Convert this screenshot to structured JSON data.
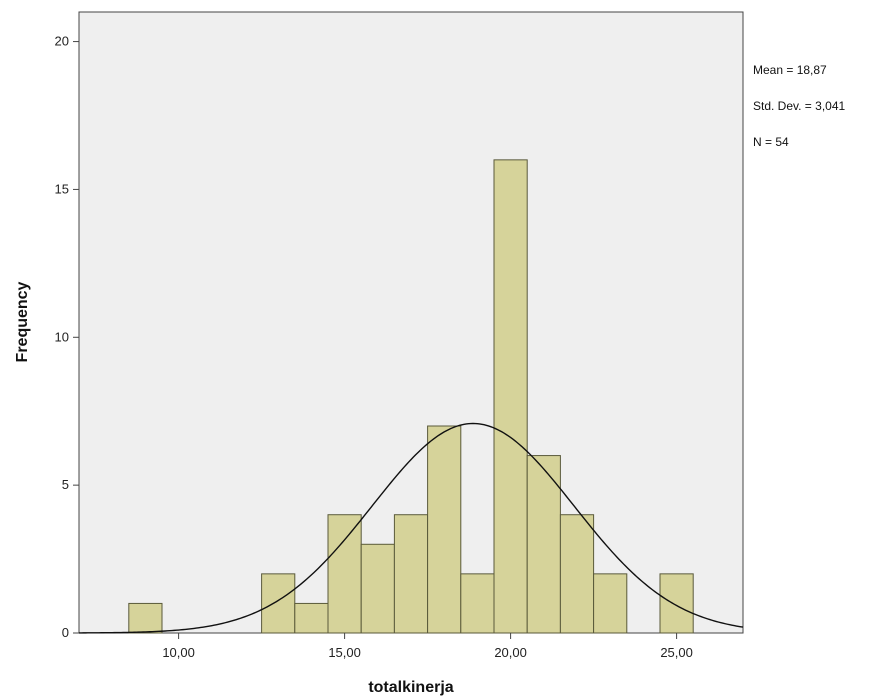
{
  "chart_data": {
    "type": "bar",
    "subtype": "histogram",
    "xlabel": "totalkinerja",
    "ylabel": "Frequency",
    "xlim": [
      7.0,
      27.0
    ],
    "ylim": [
      0,
      21
    ],
    "x_ticks": [
      10,
      15,
      20,
      25
    ],
    "x_tick_labels": [
      "10,00",
      "15,00",
      "20,00",
      "25,00"
    ],
    "y_ticks": [
      0,
      5,
      10,
      15,
      20
    ],
    "y_tick_labels": [
      "0",
      "5",
      "10",
      "15",
      "20"
    ],
    "bin_width": 1.0,
    "bins": [
      {
        "start": 8.5,
        "end": 9.5,
        "count": 1
      },
      {
        "start": 12.5,
        "end": 13.5,
        "count": 2
      },
      {
        "start": 13.5,
        "end": 14.5,
        "count": 1
      },
      {
        "start": 14.5,
        "end": 15.5,
        "count": 4
      },
      {
        "start": 15.5,
        "end": 16.5,
        "count": 3
      },
      {
        "start": 16.5,
        "end": 17.5,
        "count": 4
      },
      {
        "start": 17.5,
        "end": 18.5,
        "count": 7
      },
      {
        "start": 18.5,
        "end": 19.5,
        "count": 2
      },
      {
        "start": 19.5,
        "end": 20.5,
        "count": 16
      },
      {
        "start": 20.5,
        "end": 21.5,
        "count": 6
      },
      {
        "start": 21.5,
        "end": 22.5,
        "count": 4
      },
      {
        "start": 22.5,
        "end": 23.5,
        "count": 2
      },
      {
        "start": 24.5,
        "end": 25.5,
        "count": 2
      }
    ],
    "normal_curve": {
      "mean": 18.87,
      "std_dev": 3.041,
      "n": 54
    },
    "stats_text": [
      "Mean = 18,87",
      "Std. Dev. = 3,041",
      "N = 54"
    ],
    "grid": false,
    "colors": {
      "bar_fill": "#d6d39a",
      "bar_stroke": "#5a5a3a",
      "plot_background": "#efefef",
      "curve": "#111111",
      "frame": "#444444"
    }
  }
}
